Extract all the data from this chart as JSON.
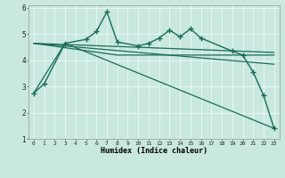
{
  "xlabel": "Humidex (Indice chaleur)",
  "xlim": [
    -0.5,
    23.5
  ],
  "ylim": [
    1,
    6.1
  ],
  "xticks": [
    0,
    1,
    2,
    3,
    4,
    5,
    6,
    7,
    8,
    9,
    10,
    11,
    12,
    13,
    14,
    15,
    16,
    17,
    18,
    19,
    20,
    21,
    22,
    23
  ],
  "yticks": [
    1,
    2,
    3,
    4,
    5,
    6
  ],
  "background_color": "#c8e8e0",
  "grid_color": "#e8f8f4",
  "line_color": "#1a6b5a",
  "series": [
    {
      "x": [
        0,
        1,
        3,
        5,
        6,
        7,
        8,
        10,
        11,
        12,
        13,
        14,
        15,
        16,
        19,
        20,
        21,
        22,
        23
      ],
      "y": [
        2.75,
        3.1,
        4.65,
        4.8,
        5.1,
        5.85,
        4.7,
        4.55,
        4.65,
        4.85,
        5.15,
        4.9,
        5.2,
        4.85,
        4.35,
        4.2,
        3.55,
        2.65,
        1.4
      ],
      "marker": "+",
      "markersize": 4,
      "linewidth": 1.0
    },
    {
      "x": [
        0,
        3,
        23
      ],
      "y": [
        2.75,
        4.65,
        1.4
      ],
      "marker": null,
      "linewidth": 0.9
    },
    {
      "x": [
        0,
        23
      ],
      "y": [
        4.65,
        4.3
      ],
      "marker": null,
      "linewidth": 0.9
    },
    {
      "x": [
        0,
        23
      ],
      "y": [
        4.65,
        3.85
      ],
      "marker": null,
      "linewidth": 0.9
    },
    {
      "x": [
        0,
        8,
        23
      ],
      "y": [
        4.65,
        4.2,
        4.2
      ],
      "marker": null,
      "linewidth": 0.9
    }
  ]
}
